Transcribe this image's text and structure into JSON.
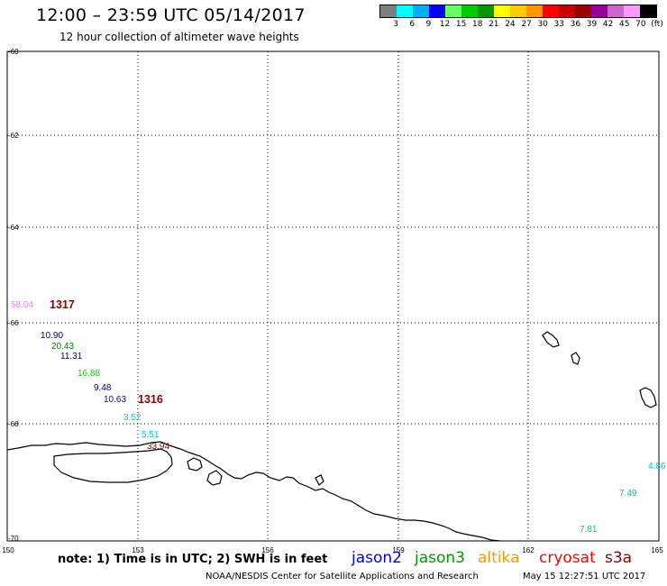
{
  "header": {
    "title": "12:00 – 23:59 UTC 05/14/2017",
    "subtitle": "12 hour collection of altimeter wave heights"
  },
  "scale": {
    "colors": [
      "#7f7f7f",
      "#00ffff",
      "#00b0f0",
      "#0000ff",
      "#66ff66",
      "#00cc00",
      "#009900",
      "#ffff00",
      "#ffcc00",
      "#ff9900",
      "#ff0000",
      "#cc0000",
      "#990000",
      "#990099",
      "#cc66cc",
      "#ff99ff",
      "#000000"
    ],
    "labels": [
      "3",
      "6",
      "9",
      "12",
      "15",
      "18",
      "21",
      "24",
      "27",
      "30",
      "33",
      "36",
      "39",
      "42",
      "45",
      "70",
      "(ft)"
    ]
  },
  "map": {
    "lat_labels": [
      "-60",
      "-62",
      "-64",
      "-66",
      "-68",
      "-70"
    ],
    "lon_labels": [
      "150",
      "153",
      "156",
      "159",
      "162",
      "165"
    ]
  },
  "observations": [
    {
      "text": "58.04",
      "color": "#ee82ee"
    },
    {
      "text": "1317",
      "color": "#8b0000"
    },
    {
      "text": "10.90",
      "color": "#00008b"
    },
    {
      "text": "20.43",
      "color": "#008000"
    },
    {
      "text": "11.31",
      "color": "#00008b"
    },
    {
      "text": "16.88",
      "color": "#22bb22"
    },
    {
      "text": "9.48",
      "color": "#00008b"
    },
    {
      "text": "10.63",
      "color": "#0000cd"
    },
    {
      "text": "1316",
      "color": "#8b0000"
    },
    {
      "text": "3.52",
      "color": "#00ced1"
    },
    {
      "text": "5.51",
      "color": "#00ced1"
    },
    {
      "text": "33.94",
      "color": "#8b0000"
    },
    {
      "text": "4.86",
      "color": "#00ced1"
    },
    {
      "text": "7.49",
      "color": "#00bcd4"
    },
    {
      "text": "7.81",
      "color": "#00bcd4"
    }
  ],
  "footer": {
    "note": "note: 1) Time is in UTC; 2) SWH is in feet",
    "satellites": [
      {
        "name": "jason2",
        "color": "#0000ff"
      },
      {
        "name": "jason3",
        "color": "#009900"
      },
      {
        "name": "altika",
        "color": "#ff9900"
      },
      {
        "name": "cryosat",
        "color": "#ff0000"
      },
      {
        "name": "s3a",
        "color": "#8b0000"
      }
    ],
    "credit": "NOAA/NESDIS Center for Satellite Applications and Research",
    "timestamp": "May 15 12:27:51 UTC 2017"
  }
}
